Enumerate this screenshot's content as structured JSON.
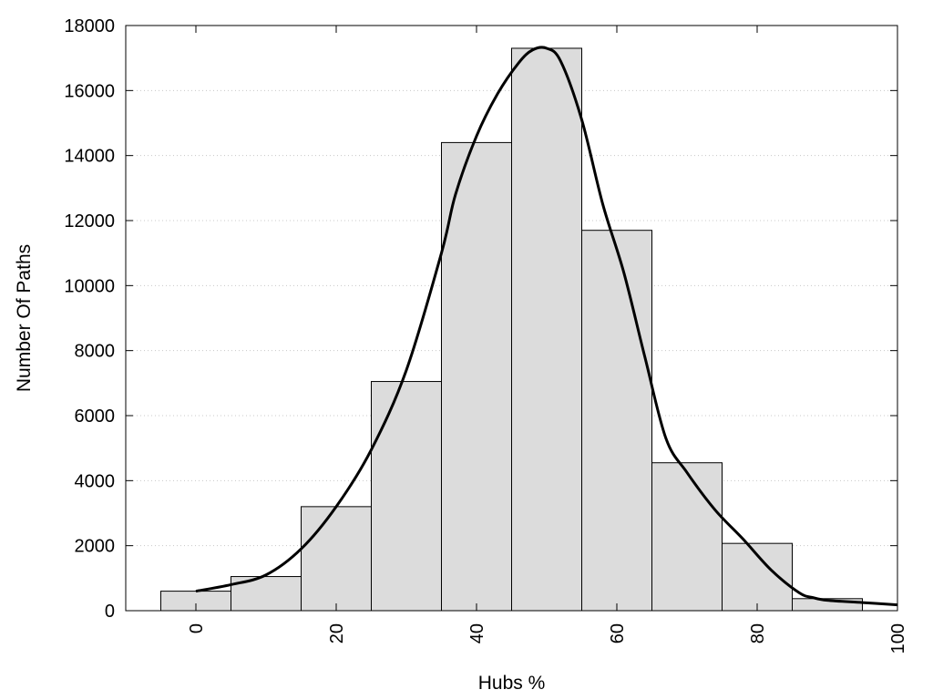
{
  "chart_data": {
    "type": "bar",
    "title": "",
    "xlabel": "Hubs %",
    "ylabel": "Number Of Paths",
    "xlim": [
      -10,
      100
    ],
    "ylim": [
      0,
      18000
    ],
    "x_ticks": [
      0,
      20,
      40,
      60,
      80,
      100
    ],
    "x_tick_labels": [
      "0",
      "20",
      "40",
      "60",
      "80",
      "100"
    ],
    "y_ticks": [
      0,
      2000,
      4000,
      6000,
      8000,
      10000,
      12000,
      14000,
      16000,
      18000
    ],
    "y_tick_labels": [
      "0",
      "2000",
      "4000",
      "6000",
      "8000",
      "10000",
      "12000",
      "14000",
      "16000",
      "18000"
    ],
    "grid": "horizontal dotted",
    "bin_width": 10,
    "bins": [
      {
        "center": 0,
        "value": 600
      },
      {
        "center": 10,
        "value": 1050
      },
      {
        "center": 20,
        "value": 3200
      },
      {
        "center": 30,
        "value": 7050
      },
      {
        "center": 40,
        "value": 14400
      },
      {
        "center": 50,
        "value": 17300
      },
      {
        "center": 60,
        "value": 11700
      },
      {
        "center": 70,
        "value": 4550
      },
      {
        "center": 80,
        "value": 2070
      },
      {
        "center": 90,
        "value": 370
      }
    ],
    "curve": {
      "x": [
        0,
        5,
        10,
        15,
        20,
        25,
        30,
        35,
        37,
        40,
        43,
        46,
        48,
        50,
        52,
        55,
        58,
        61,
        64,
        67,
        70,
        74,
        78,
        82,
        86,
        88,
        90,
        95,
        100
      ],
      "y": [
        600,
        800,
        1100,
        1900,
        3200,
        4950,
        7400,
        11000,
        12800,
        14600,
        15900,
        16850,
        17250,
        17300,
        16900,
        15100,
        12500,
        10400,
        7800,
        5300,
        4250,
        3100,
        2200,
        1250,
        550,
        400,
        320,
        250,
        180
      ]
    },
    "colors": {
      "bar_fill": "#dcdcdc",
      "bar_stroke": "#000000",
      "curve": "#000000",
      "grid": "#c8c8c8"
    }
  }
}
